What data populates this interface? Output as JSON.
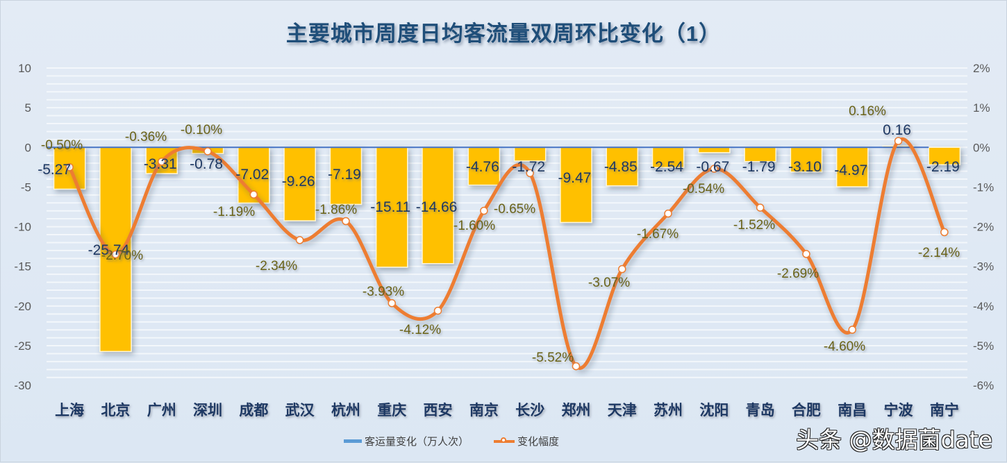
{
  "title": "主要城市周度日均客流量双周环比变化（1）",
  "legend": {
    "bar_label": "客运量变化（万人次）",
    "line_label": "变化幅度"
  },
  "watermark": "头条 @数据菌date",
  "colors": {
    "bar": "#ffc000",
    "line": "#ed7d31",
    "zero_line": "#4472c4",
    "legend_bar": "#5b9bd5"
  },
  "chart_data": {
    "type": "bar+line",
    "title": "主要城市周度日均客流量双周环比变化（1）",
    "categories": [
      "上海",
      "北京",
      "广州",
      "深圳",
      "成都",
      "武汉",
      "杭州",
      "重庆",
      "西安",
      "南京",
      "长沙",
      "郑州",
      "天津",
      "苏州",
      "沈阳",
      "青岛",
      "合肥",
      "南昌",
      "宁波",
      "南宁"
    ],
    "series": [
      {
        "name": "客运量变化（万人次）",
        "type": "bar",
        "axis": "left",
        "values": [
          -5.27,
          -25.74,
          -3.31,
          -0.78,
          -7.02,
          -9.26,
          -7.19,
          -15.11,
          -14.66,
          -4.76,
          -1.72,
          -9.47,
          -4.85,
          -2.54,
          -0.67,
          -1.79,
          -3.1,
          -4.97,
          0.16,
          -2.19
        ],
        "labels": [
          "-5.27",
          "-25.74",
          "-3.31",
          "-0.78",
          "-7.02",
          "-9.26",
          "-7.19",
          "-15.11",
          "-14.66",
          "-4.76",
          "-1.72",
          "-9.47",
          "-4.85",
          "-2.54",
          "-0.67",
          "-1.79",
          "-3.10",
          "-4.97",
          "0.16",
          "-2.19"
        ]
      },
      {
        "name": "变化幅度",
        "type": "line",
        "axis": "right",
        "values": [
          -0.5,
          -2.7,
          -0.36,
          -0.1,
          -1.19,
          -2.34,
          -1.86,
          -3.93,
          -4.12,
          -1.6,
          -0.65,
          -5.52,
          -3.07,
          -1.67,
          -0.54,
          -1.52,
          -2.69,
          -4.6,
          0.16,
          -2.14
        ],
        "labels": [
          "-0.50%",
          "-2.70%",
          "-0.36%",
          "-0.10%",
          "-1.19%",
          "-2.34%",
          "-1.86%",
          "-3.93%",
          "-4.12%",
          "-1.60%",
          "-0.65%",
          "-5.52%",
          "-3.07%",
          "-1.67%",
          "-0.54%",
          "-1.52%",
          "-2.69%",
          "-4.60%",
          "0.16%",
          "-2.14%"
        ]
      }
    ],
    "left_axis": {
      "ylim": [
        -30,
        10
      ],
      "ticks": [
        "10",
        "5",
        "0",
        "-5",
        "-10",
        "-15",
        "-20",
        "-25",
        "-30"
      ]
    },
    "right_axis": {
      "ylim": [
        -6,
        2
      ],
      "ticks": [
        "2%",
        "1%",
        "0%",
        "-1%",
        "-2%",
        "-3%",
        "-4%",
        "-5%",
        "-6%"
      ]
    },
    "xlabel": "",
    "ylabel": "",
    "grid": true,
    "legend_position": "bottom"
  }
}
